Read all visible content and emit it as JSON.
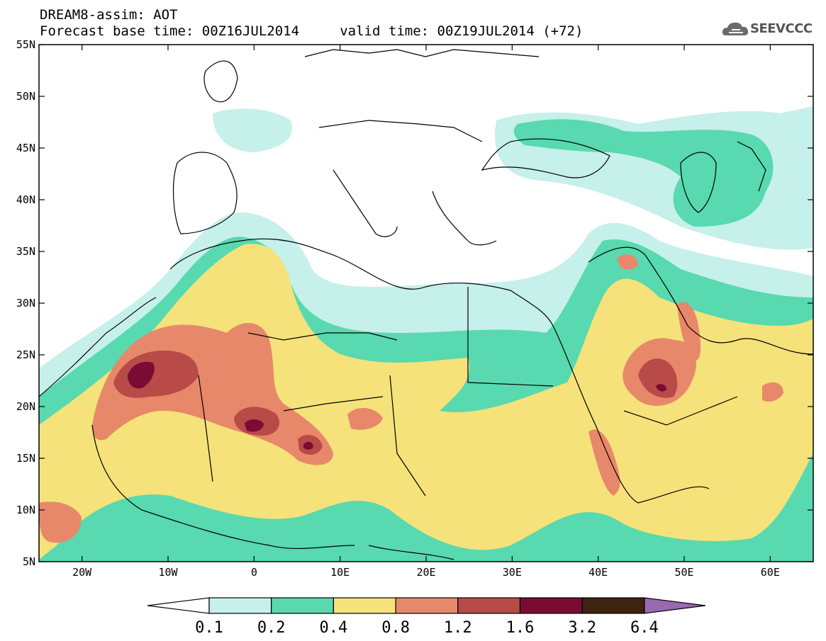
{
  "header": {
    "title_line1": "DREAM8-assim: AOT",
    "title_line2": "Forecast base time: 00Z16JUL2014     valid time: 00Z19JUL2014 (+72)",
    "logo_text": "SEEVCCC",
    "logo_icon": "cloud-icon"
  },
  "map": {
    "lat_labels": [
      "55N",
      "50N",
      "45N",
      "40N",
      "35N",
      "30N",
      "25N",
      "20N",
      "15N",
      "10N",
      "5N"
    ],
    "lon_labels": [
      "20W",
      "10W",
      "0",
      "10E",
      "20E",
      "30E",
      "40E",
      "50E",
      "60E"
    ],
    "lat_range": [
      5,
      55
    ],
    "lon_range": [
      -25,
      65
    ],
    "variable": "AOT"
  },
  "legend": {
    "labels": [
      "0.1",
      "0.2",
      "0.4",
      "0.8",
      "1.2",
      "1.6",
      "3.2",
      "6.4"
    ],
    "colors": {
      "below": "#ffffff",
      "c1": "#c6f0ea",
      "c2": "#58d9b0",
      "c3": "#f5e27a",
      "c4": "#e8886a",
      "c5": "#b84a48",
      "c6": "#7a0b32",
      "c7": "#3d2410",
      "above": "#9a6ab0"
    }
  }
}
